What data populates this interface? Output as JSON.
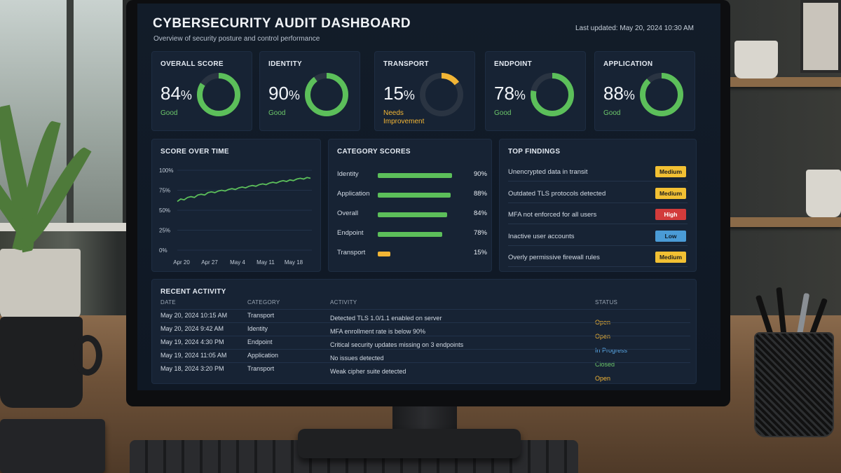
{
  "dashboard": {
    "title": "CYBERSECURITY AUDIT DASHBOARD",
    "subtitle": "Overview of security posture and control performance",
    "last_updated": "Last updated: May 20, 2024 10:30 AM"
  },
  "kpis": [
    {
      "label": "OVERALL SCORE",
      "value": "84",
      "unit": "%",
      "status": "Good",
      "score": 0.84,
      "color": "#5cbf5a",
      "status_color": "#6cc76a"
    },
    {
      "label": "IDENTITY",
      "value": "90",
      "unit": "%",
      "status": "Good",
      "score": 0.9,
      "color": "#5cbf5a",
      "status_color": "#6cc76a"
    },
    {
      "label": "TRANSPORT",
      "value": "15",
      "unit": "%",
      "status": "Needs Improvement",
      "score": 0.15,
      "color": "#f2b535",
      "status_color": "#f2b535"
    },
    {
      "label": "ENDPOINT",
      "value": "78",
      "unit": "%",
      "status": "Good",
      "score": 0.78,
      "color": "#5cbf5a",
      "status_color": "#6cc76a"
    },
    {
      "label": "APPLICATION",
      "value": "88",
      "unit": "%",
      "status": "Good",
      "score": 0.88,
      "color": "#5cbf5a",
      "status_color": "#6cc76a"
    }
  ],
  "score_over_time": {
    "title": "SCORE OVER TIME",
    "chart_data": {
      "type": "line",
      "x_ticks": [
        "Apr 20",
        "Apr 27",
        "May 4",
        "May 11",
        "May 18"
      ],
      "y_ticks": [
        "100%",
        "75%",
        "50%",
        "25%",
        "0%"
      ],
      "ylim": [
        0,
        100
      ],
      "values": [
        61,
        64,
        63,
        66,
        67,
        66,
        69,
        70,
        69,
        72,
        73,
        72,
        74,
        75,
        74,
        76,
        77,
        76,
        78,
        79,
        78,
        80,
        81,
        80,
        82,
        83,
        82,
        84,
        85,
        84,
        86,
        87,
        86,
        88,
        87,
        89,
        90,
        89,
        91,
        90
      ],
      "line_color": "#5cbf5a"
    }
  },
  "category_scores": {
    "title": "CATEGORY SCORES",
    "items": [
      {
        "name": "Identity",
        "value": "90%",
        "score": 0.9,
        "color": "#5cbf5a"
      },
      {
        "name": "Application",
        "value": "88%",
        "score": 0.88,
        "color": "#5cbf5a"
      },
      {
        "name": "Overall",
        "value": "84%",
        "score": 0.84,
        "color": "#5cbf5a"
      },
      {
        "name": "Endpoint",
        "value": "78%",
        "score": 0.78,
        "color": "#5cbf5a"
      },
      {
        "name": "Transport",
        "value": "15%",
        "score": 0.15,
        "color": "#f2b535"
      }
    ]
  },
  "top_findings": {
    "title": "TOP FINDINGS",
    "items": [
      {
        "text": "Unencrypted data in transit",
        "severity": "Medium",
        "bg": "#f2c033",
        "fg": "#1d1d1d"
      },
      {
        "text": "Outdated TLS protocols detected",
        "severity": "Medium",
        "bg": "#f2c033",
        "fg": "#1d1d1d"
      },
      {
        "text": "MFA not enforced for all users",
        "severity": "High",
        "bg": "#d23b3b",
        "fg": "#ffffff"
      },
      {
        "text": "Inactive user accounts",
        "severity": "Low",
        "bg": "#4a9bd6",
        "fg": "#0d1a26"
      },
      {
        "text": "Overly permissive firewall rules",
        "severity": "Medium",
        "bg": "#f2c033",
        "fg": "#1d1d1d"
      }
    ]
  },
  "recent_activity": {
    "title": "RECENT ACTIVITY",
    "columns": {
      "date": "DATE",
      "category": "CATEGORY",
      "activity": "ACTIVITY",
      "status": "STATUS"
    },
    "rows": [
      {
        "date": "May 20, 2024  10:15 AM",
        "category": "Transport",
        "activity": "Detected TLS 1.0/1.1 enabled on server",
        "status": "Open",
        "status_color": "#f2b535"
      },
      {
        "date": "May 20, 2024  9:42 AM",
        "category": "Identity",
        "activity": "MFA enrollment rate is below 90%",
        "status": "Open",
        "status_color": "#f2b535"
      },
      {
        "date": "May 19, 2024  4:30 PM",
        "category": "Endpoint",
        "activity": "Critical security updates missing on 3 endpoints",
        "status": "In Progress",
        "status_color": "#5aa8e6"
      },
      {
        "date": "May 19, 2024  11:05 AM",
        "category": "Application",
        "activity": "No issues detected",
        "status": "Closed",
        "status_color": "#6cc76a"
      },
      {
        "date": "May 18, 2024  3:20 PM",
        "category": "Transport",
        "activity": "Weak cipher suite detected",
        "status": "Open",
        "status_color": "#f2b535"
      }
    ]
  }
}
